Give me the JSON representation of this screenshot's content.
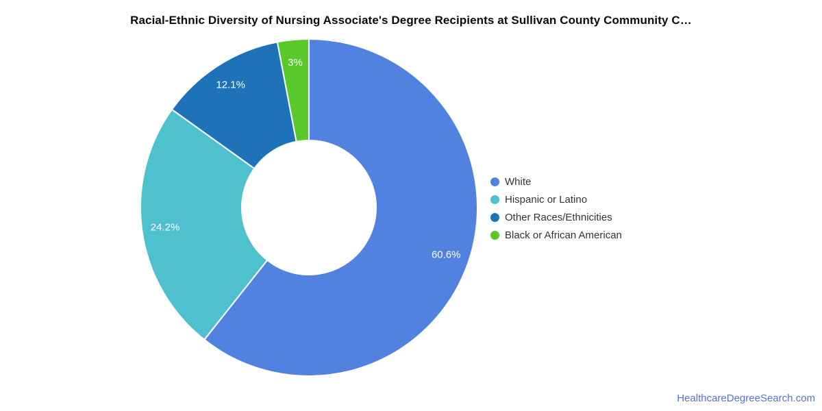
{
  "title": "Racial-Ethnic Diversity of Nursing Associate's Degree Recipients at Sullivan County Community C…",
  "footer": {
    "link_text": "HealthcareDegreeSearch.com",
    "link_color": "#5872c9"
  },
  "chart_data": {
    "type": "pie",
    "donut": true,
    "title": "Racial-Ethnic Diversity of Nursing Associate's Degree Recipients at Sullivan County Community C…",
    "legend_position": "right",
    "start_angle_deg": 0,
    "direction": "clockwise",
    "categories": [
      "White",
      "Hispanic or Latino",
      "Other Races/Ethnicities",
      "Black or African American"
    ],
    "values": [
      60.6,
      24.2,
      12.1,
      3
    ],
    "slice_labels": [
      "60.6%",
      "24.2%",
      "12.1%",
      "3%"
    ],
    "colors": [
      "#5282df",
      "#4fc0ce",
      "#1e73b8",
      "#58c82b"
    ],
    "label_text_color": "#ffffff",
    "background_color": "#ffffff"
  }
}
